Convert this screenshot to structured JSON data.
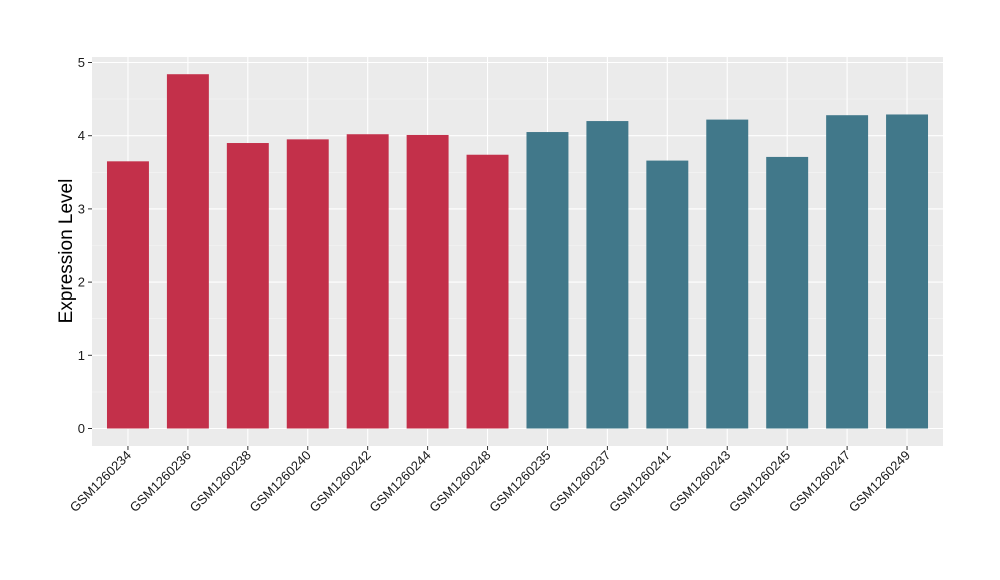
{
  "chart_data": {
    "type": "bar",
    "title": "",
    "xlabel": "",
    "ylabel": "Expression Level",
    "ylim": [
      0,
      5
    ],
    "yticks": [
      0,
      1,
      2,
      3,
      4,
      5
    ],
    "grid": true,
    "categories": [
      "GSM1260234",
      "GSM1260236",
      "GSM1260238",
      "GSM1260240",
      "GSM1260242",
      "GSM1260244",
      "GSM1260248",
      "GSM1260235",
      "GSM1260237",
      "GSM1260241",
      "GSM1260243",
      "GSM1260245",
      "GSM1260247",
      "GSM1260249"
    ],
    "values": [
      3.65,
      4.84,
      3.9,
      3.95,
      4.02,
      4.01,
      3.74,
      4.05,
      4.2,
      3.66,
      4.22,
      3.71,
      4.28,
      4.29
    ],
    "group_colors": [
      "#c3304a",
      "#c3304a",
      "#c3304a",
      "#c3304a",
      "#c3304a",
      "#c3304a",
      "#c3304a",
      "#41788a",
      "#41788a",
      "#41788a",
      "#41788a",
      "#41788a",
      "#41788a",
      "#41788a"
    ],
    "colors": {
      "panel_background": "#ebebeb",
      "grid_major": "#ffffff",
      "grid_minor": "#f5f5f5",
      "group_a": "#c3304a",
      "group_b": "#41788a"
    }
  }
}
